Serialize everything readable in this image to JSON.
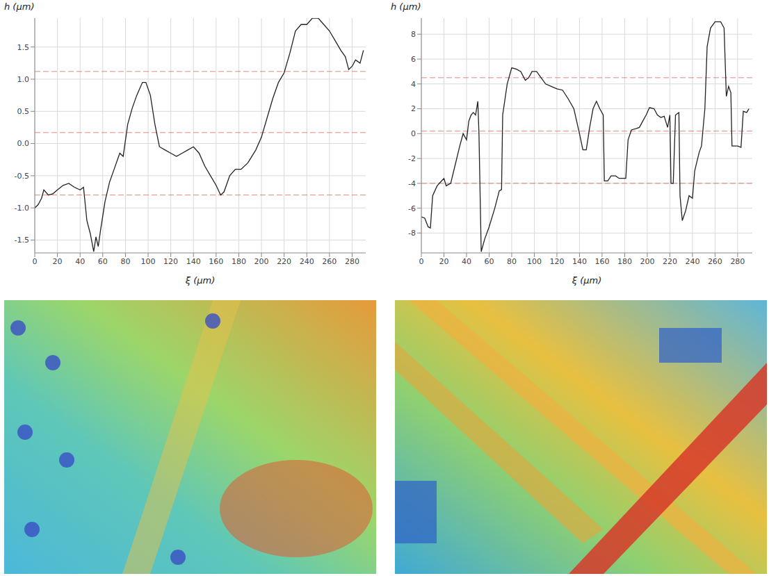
{
  "chart_data": [
    {
      "type": "line",
      "x_label": "ξ (µm)",
      "y_label": "h (µm)",
      "grid": true,
      "xlim": [
        0,
        292
      ],
      "xticks": [
        0,
        20,
        40,
        60,
        80,
        100,
        120,
        140,
        160,
        180,
        200,
        220,
        240,
        260,
        280
      ],
      "ylim": [
        -1.7,
        1.95
      ],
      "yticks": [
        {
          "value": -1.5,
          "label": "-1.5"
        },
        {
          "value": -1,
          "label": "-1.0"
        },
        {
          "value": -0.5,
          "label": "-0.5"
        },
        {
          "value": 0,
          "label": "0.0"
        },
        {
          "value": 0.5,
          "label": "0.5"
        },
        {
          "value": 1,
          "label": "1.0"
        },
        {
          "value": 1.5,
          "label": "1.5"
        }
      ],
      "reference_lines": [
        1.12,
        0.17,
        -0.8
      ],
      "series": [
        {
          "color": "#222222",
          "x": [
            0,
            3,
            6,
            8,
            12,
            16,
            20,
            25,
            30,
            35,
            40,
            43,
            46,
            49,
            52,
            54,
            56,
            58,
            62,
            66,
            70,
            75,
            78,
            82,
            86,
            90,
            95,
            98,
            102,
            106,
            110,
            115,
            120,
            125,
            130,
            135,
            140,
            145,
            150,
            155,
            160,
            164,
            167,
            172,
            177,
            182,
            188,
            195,
            200,
            205,
            210,
            215,
            220,
            225,
            230,
            235,
            240,
            245,
            250,
            255,
            260,
            265,
            270,
            274,
            277,
            280,
            283,
            287,
            290
          ],
          "values": [
            -1.0,
            -0.95,
            -0.85,
            -0.72,
            -0.8,
            -0.78,
            -0.72,
            -0.65,
            -0.62,
            -0.68,
            -0.72,
            -0.68,
            -1.2,
            -1.4,
            -1.68,
            -1.45,
            -1.6,
            -1.35,
            -0.9,
            -0.6,
            -0.4,
            -0.15,
            -0.2,
            0.3,
            0.55,
            0.75,
            0.95,
            0.95,
            0.75,
            0.3,
            -0.05,
            -0.1,
            -0.15,
            -0.2,
            -0.15,
            -0.1,
            -0.05,
            -0.15,
            -0.35,
            -0.5,
            -0.65,
            -0.8,
            -0.75,
            -0.5,
            -0.4,
            -0.4,
            -0.3,
            -0.1,
            0.1,
            0.4,
            0.7,
            0.95,
            1.1,
            1.4,
            1.75,
            1.85,
            1.85,
            1.95,
            1.95,
            1.85,
            1.75,
            1.6,
            1.45,
            1.35,
            1.15,
            1.2,
            1.3,
            1.25,
            1.45
          ]
        }
      ]
    },
    {
      "type": "line",
      "x_label": "ξ (µm)",
      "y_label": "h (µm)",
      "grid": true,
      "xlim": [
        0,
        293
      ],
      "xticks": [
        0,
        20,
        40,
        60,
        80,
        100,
        120,
        140,
        160,
        180,
        200,
        220,
        240,
        260,
        280
      ],
      "ylim": [
        -9.6,
        9.3
      ],
      "yticks": [
        -8,
        -6,
        -4,
        -2,
        0,
        2,
        4,
        6,
        8
      ],
      "reference_lines": [
        4.5,
        0.2,
        -4.0
      ],
      "series": [
        {
          "color": "#222222",
          "x": [
            0,
            3,
            6,
            8,
            10,
            14,
            18,
            20,
            22,
            26,
            30,
            34,
            37,
            40,
            42,
            44,
            46,
            48,
            50,
            51,
            53,
            56,
            60,
            65,
            69,
            71,
            72,
            76,
            80,
            84,
            88,
            92,
            95,
            98,
            102,
            106,
            110,
            115,
            120,
            125,
            130,
            135,
            140,
            143,
            146,
            149,
            152,
            155,
            158,
            161,
            162,
            165,
            168,
            172,
            175,
            178,
            181,
            183,
            186,
            190,
            193,
            196,
            199,
            202,
            206,
            209,
            212,
            215,
            218,
            220,
            221,
            223,
            225,
            228,
            229,
            231,
            234,
            237,
            240,
            242,
            246,
            248,
            251,
            253,
            256,
            260,
            265,
            268,
            270,
            272,
            274,
            275,
            280,
            283,
            285,
            288,
            290
          ],
          "values": [
            -6.7,
            -6.8,
            -7.5,
            -7.6,
            -5,
            -4.2,
            -3.8,
            -3.6,
            -4.2,
            -4,
            -2.5,
            -1,
            0,
            -0.5,
            1,
            1.5,
            1.7,
            1.5,
            2.6,
            0,
            -9.5,
            -8.5,
            -7.5,
            -6,
            -4.6,
            -4.5,
            1.5,
            4,
            5.3,
            5.2,
            5,
            4.3,
            4.5,
            5,
            5,
            4.5,
            4,
            3.8,
            3.6,
            3.5,
            2.8,
            2.0,
            0,
            -1.3,
            -1.3,
            0.5,
            2,
            2.6,
            2,
            1.5,
            -3.8,
            -3.8,
            -3.4,
            -3.4,
            -3.6,
            -3.6,
            -3.6,
            -0.5,
            0.3,
            0.4,
            0.5,
            1,
            1.5,
            2.1,
            2,
            1.5,
            1.3,
            1.4,
            0.5,
            1.5,
            -4.0,
            -4,
            1.5,
            1.7,
            -5,
            -7,
            -6.2,
            -5,
            -5.2,
            -3,
            -1.5,
            -1,
            2,
            7,
            8.5,
            9,
            9,
            8.5,
            3,
            3.8,
            3.3,
            -1,
            -1,
            -1.1,
            1.8,
            1.7,
            2
          ]
        }
      ]
    }
  ]
}
